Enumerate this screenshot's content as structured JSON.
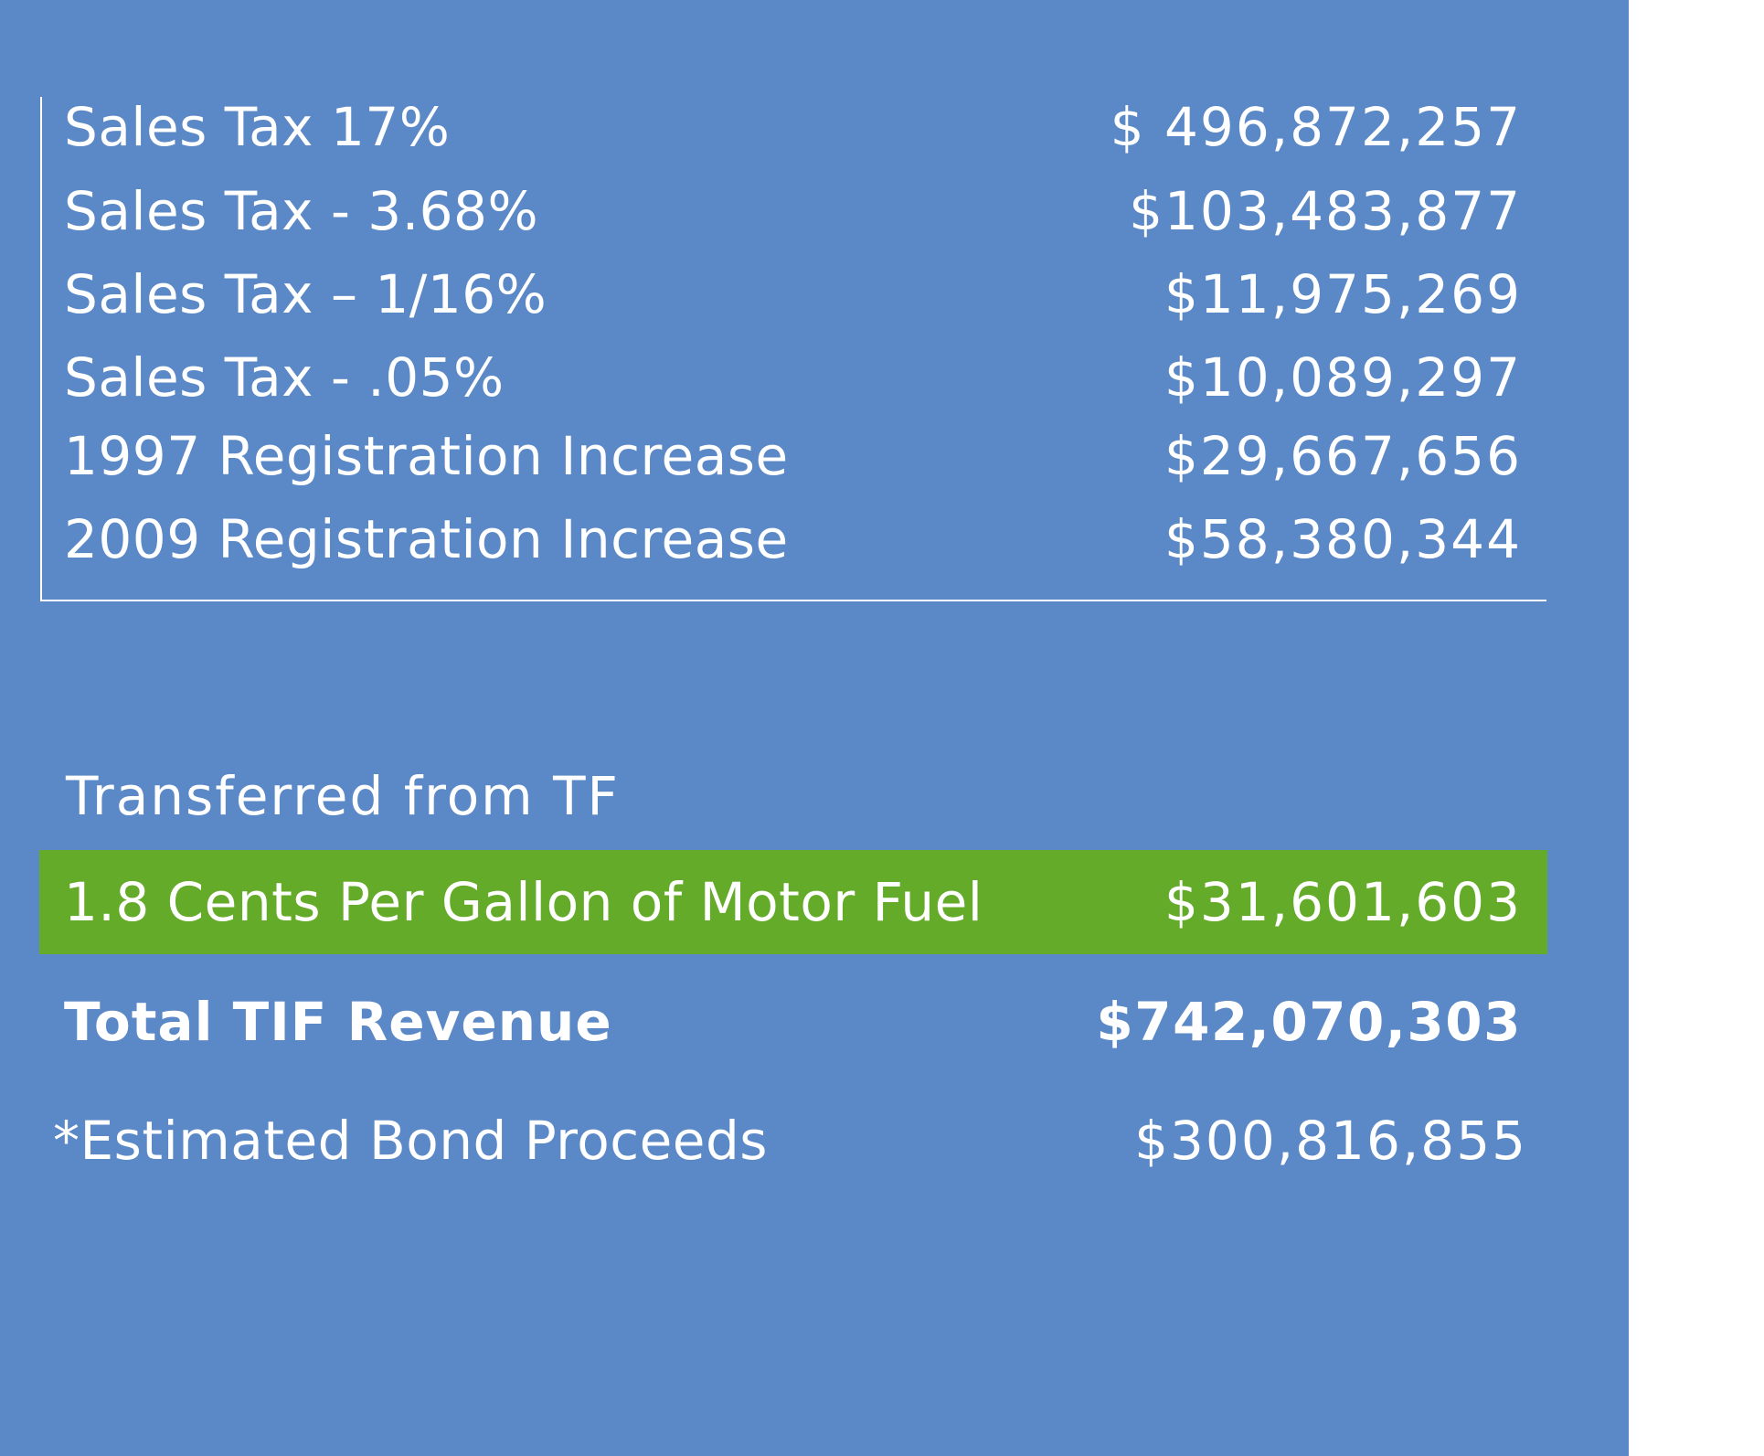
{
  "revenue_items": [
    {
      "label": "Sales Tax 17%",
      "value": "$ 496,872,257"
    },
    {
      "label": "Sales Tax - 3.68%",
      "value": "$103,483,877"
    },
    {
      "label": "Sales Tax – 1/16%",
      "value": "$11,975,269"
    },
    {
      "label": "Sales Tax - .05%",
      "value": "$10,089,297"
    },
    {
      "label": "1997 Registration Increase",
      "value": "$29,667,656"
    },
    {
      "label": "2009 Registration Increase",
      "value": "$58,380,344"
    }
  ],
  "transfer_section": {
    "title": "Transferred from TF",
    "item": {
      "label": "1.8 Cents Per Gallon of Motor Fuel",
      "value": "$31,601,603"
    }
  },
  "total": {
    "label": "Total TIF Revenue",
    "value": "$742,070,303"
  },
  "bond": {
    "label": "*Estimated Bond Proceeds",
    "value": "$300,816,855"
  },
  "colors": {
    "panel": "#5b88c6",
    "highlight": "#65ab2a",
    "text": "#ffffff"
  }
}
